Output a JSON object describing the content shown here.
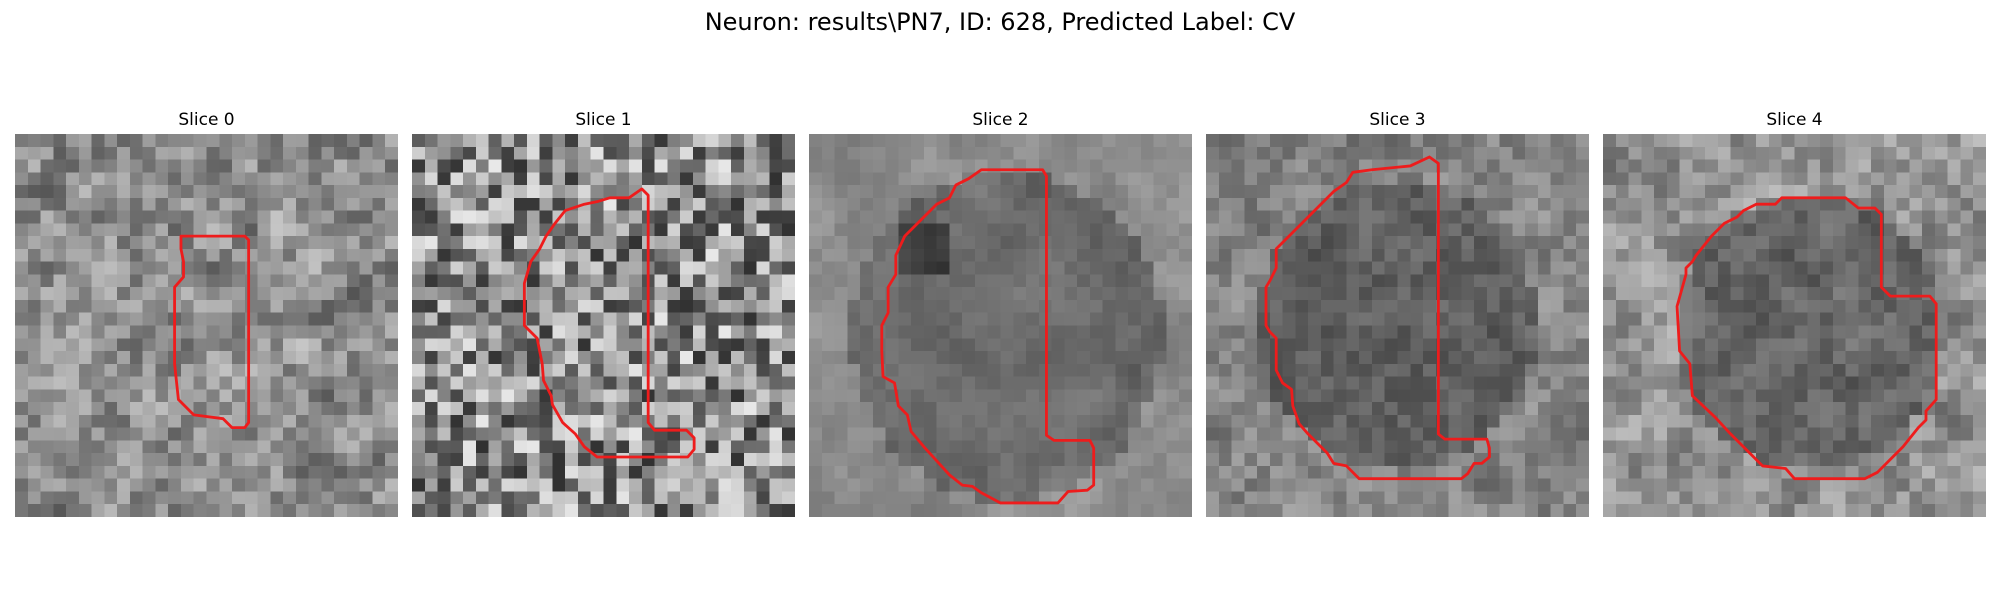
{
  "figure": {
    "title": "Neuron: results\\PN7, ID: 628, Predicted Label: CV"
  },
  "colors": {
    "contour": "#ee1c1c",
    "background": "#ffffff"
  },
  "image": {
    "grid_size": 30,
    "colormap": "gray"
  },
  "slices": [
    {
      "title": "Slice 0",
      "contour": [
        [
          13,
          8
        ],
        [
          18,
          8
        ],
        [
          18.3,
          8.3
        ],
        [
          18.3,
          22.6
        ],
        [
          18,
          23
        ],
        [
          17,
          23
        ],
        [
          16.3,
          22.3
        ],
        [
          14,
          22
        ],
        [
          12.8,
          20.8
        ],
        [
          12.5,
          18
        ],
        [
          12.5,
          12
        ],
        [
          13.2,
          11.2
        ],
        [
          13.2,
          10
        ],
        [
          13,
          9
        ]
      ],
      "texture": {
        "seed": 11,
        "mean": 0.55,
        "contrast": 0.3,
        "smooth": 1,
        "blobs": []
      }
    },
    {
      "title": "Slice 1",
      "contour": [
        [
          13.5,
          5.5
        ],
        [
          14.5,
          5.3
        ],
        [
          15.5,
          5
        ],
        [
          17,
          5
        ],
        [
          18,
          4.3
        ],
        [
          18.5,
          4.8
        ],
        [
          18.5,
          22.6
        ],
        [
          19,
          23.2
        ],
        [
          21.5,
          23.2
        ],
        [
          22.1,
          23.8
        ],
        [
          22.1,
          24.7
        ],
        [
          21.6,
          25.3
        ],
        [
          14.5,
          25.3
        ],
        [
          13.5,
          24.5
        ],
        [
          12.8,
          23.5
        ],
        [
          11.8,
          22.6
        ],
        [
          11,
          21.2
        ],
        [
          10.9,
          20.5
        ],
        [
          10.3,
          19.3
        ],
        [
          10.2,
          18
        ],
        [
          9.8,
          16
        ],
        [
          8.8,
          15
        ],
        [
          8.8,
          11.7
        ],
        [
          9.3,
          10
        ],
        [
          10,
          9
        ],
        [
          10.5,
          8
        ],
        [
          11.2,
          7
        ],
        [
          12,
          6
        ]
      ],
      "texture": {
        "seed": 23,
        "mean": 0.55,
        "contrast": 0.36,
        "smooth": 0,
        "blobs": []
      }
    },
    {
      "title": "Slice 2",
      "contour": [
        [
          10,
          5.5
        ],
        [
          11,
          5
        ],
        [
          11.5,
          4
        ],
        [
          12.5,
          3.5
        ],
        [
          13.5,
          2.8
        ],
        [
          14.5,
          2.8
        ],
        [
          18.3,
          2.8
        ],
        [
          18.6,
          3.3
        ],
        [
          18.6,
          23.6
        ],
        [
          19.2,
          24
        ],
        [
          22,
          24
        ],
        [
          22.3,
          24.6
        ],
        [
          22.3,
          27.5
        ],
        [
          21.8,
          27.9
        ],
        [
          20.3,
          28
        ],
        [
          19.5,
          28.9
        ],
        [
          15,
          28.9
        ],
        [
          13.5,
          28.1
        ],
        [
          12.8,
          27.6
        ],
        [
          12,
          27.5
        ],
        [
          11,
          26.7
        ],
        [
          10,
          25.6
        ],
        [
          9,
          24.5
        ],
        [
          8,
          23.3
        ],
        [
          7.7,
          22
        ],
        [
          7,
          21.3
        ],
        [
          6.7,
          19.5
        ],
        [
          5.8,
          19
        ],
        [
          5.7,
          17
        ],
        [
          5.7,
          15
        ],
        [
          6.2,
          14
        ],
        [
          6.2,
          12
        ],
        [
          6.8,
          11
        ],
        [
          6.8,
          9.5
        ],
        [
          7.5,
          8
        ],
        [
          8.5,
          7
        ],
        [
          9.5,
          6
        ]
      ],
      "texture": {
        "seed": 37,
        "mean": 0.55,
        "contrast": 0.16,
        "smooth": 2,
        "blobs": [
          {
            "cx": 15.5,
            "cy": 15.8,
            "rx": 9.8,
            "ry": 10.3,
            "val": 0.36,
            "ring": 0.14
          },
          {
            "cx": 9,
            "cy": 9,
            "rx": 2.5,
            "ry": 2.5,
            "val": 0.12,
            "ring": 0
          }
        ]
      }
    },
    {
      "title": "Slice 3",
      "contour": [
        [
          5.5,
          9
        ],
        [
          7,
          7.5
        ],
        [
          8,
          6.5
        ],
        [
          9,
          5.5
        ],
        [
          10,
          4.5
        ],
        [
          11,
          3.8
        ],
        [
          11.5,
          3
        ],
        [
          13,
          2.8
        ],
        [
          16,
          2.5
        ],
        [
          17.5,
          1.8
        ],
        [
          18.2,
          2.3
        ],
        [
          18.2,
          23.5
        ],
        [
          18.7,
          23.9
        ],
        [
          22,
          23.9
        ],
        [
          22.2,
          24.6
        ],
        [
          22.2,
          25.3
        ],
        [
          21.6,
          25.8
        ],
        [
          21,
          25.8
        ],
        [
          20.5,
          26.6
        ],
        [
          20,
          27
        ],
        [
          12,
          27
        ],
        [
          11,
          26
        ],
        [
          10,
          25.8
        ],
        [
          9.5,
          25
        ],
        [
          8,
          23.5
        ],
        [
          7.3,
          22.7
        ],
        [
          6.8,
          21.3
        ],
        [
          6.7,
          20
        ],
        [
          6,
          19.5
        ],
        [
          5.5,
          18.5
        ],
        [
          5.5,
          16
        ],
        [
          5,
          15.5
        ],
        [
          4.7,
          15
        ],
        [
          4.7,
          12
        ],
        [
          5,
          11.5
        ],
        [
          5.5,
          10.5
        ],
        [
          5.5,
          9.6
        ]
      ],
      "texture": {
        "seed": 53,
        "mean": 0.52,
        "contrast": 0.2,
        "smooth": 1,
        "blobs": [
          {
            "cx": 15,
            "cy": 15,
            "rx": 11,
            "ry": 11.5,
            "val": 0.3,
            "ring": 0
          }
        ]
      }
    },
    {
      "title": "Slice 4",
      "contour": [
        [
          13.5,
          5.5
        ],
        [
          14,
          5
        ],
        [
          19,
          5
        ],
        [
          20,
          5.8
        ],
        [
          21.3,
          5.8
        ],
        [
          21.8,
          6.3
        ],
        [
          21.8,
          12
        ],
        [
          22.5,
          12.7
        ],
        [
          25.6,
          12.7
        ],
        [
          26.1,
          13.3
        ],
        [
          26.1,
          20.8
        ],
        [
          25.3,
          21.7
        ],
        [
          25.3,
          22.4
        ],
        [
          24.7,
          23
        ],
        [
          23.5,
          24.5
        ],
        [
          22.5,
          25.5
        ],
        [
          21.5,
          26.5
        ],
        [
          20.5,
          27
        ],
        [
          15,
          27
        ],
        [
          14.3,
          26.2
        ],
        [
          12.5,
          26
        ],
        [
          11.3,
          24.8
        ],
        [
          10,
          23.5
        ],
        [
          8.8,
          22.2
        ],
        [
          7,
          20.5
        ],
        [
          6.8,
          18
        ],
        [
          6,
          17
        ],
        [
          5.8,
          13.5
        ],
        [
          6.5,
          11
        ],
        [
          6.5,
          10.5
        ],
        [
          7,
          10
        ],
        [
          7.3,
          9.5
        ],
        [
          8.5,
          8
        ],
        [
          9.5,
          7
        ],
        [
          10.5,
          6.5
        ],
        [
          11,
          6
        ],
        [
          12,
          5.5
        ]
      ],
      "texture": {
        "seed": 71,
        "mean": 0.58,
        "contrast": 0.24,
        "smooth": 1,
        "blobs": [
          {
            "cx": 16,
            "cy": 15.5,
            "rx": 10.5,
            "ry": 11,
            "val": 0.3,
            "ring": 0
          }
        ]
      }
    }
  ]
}
